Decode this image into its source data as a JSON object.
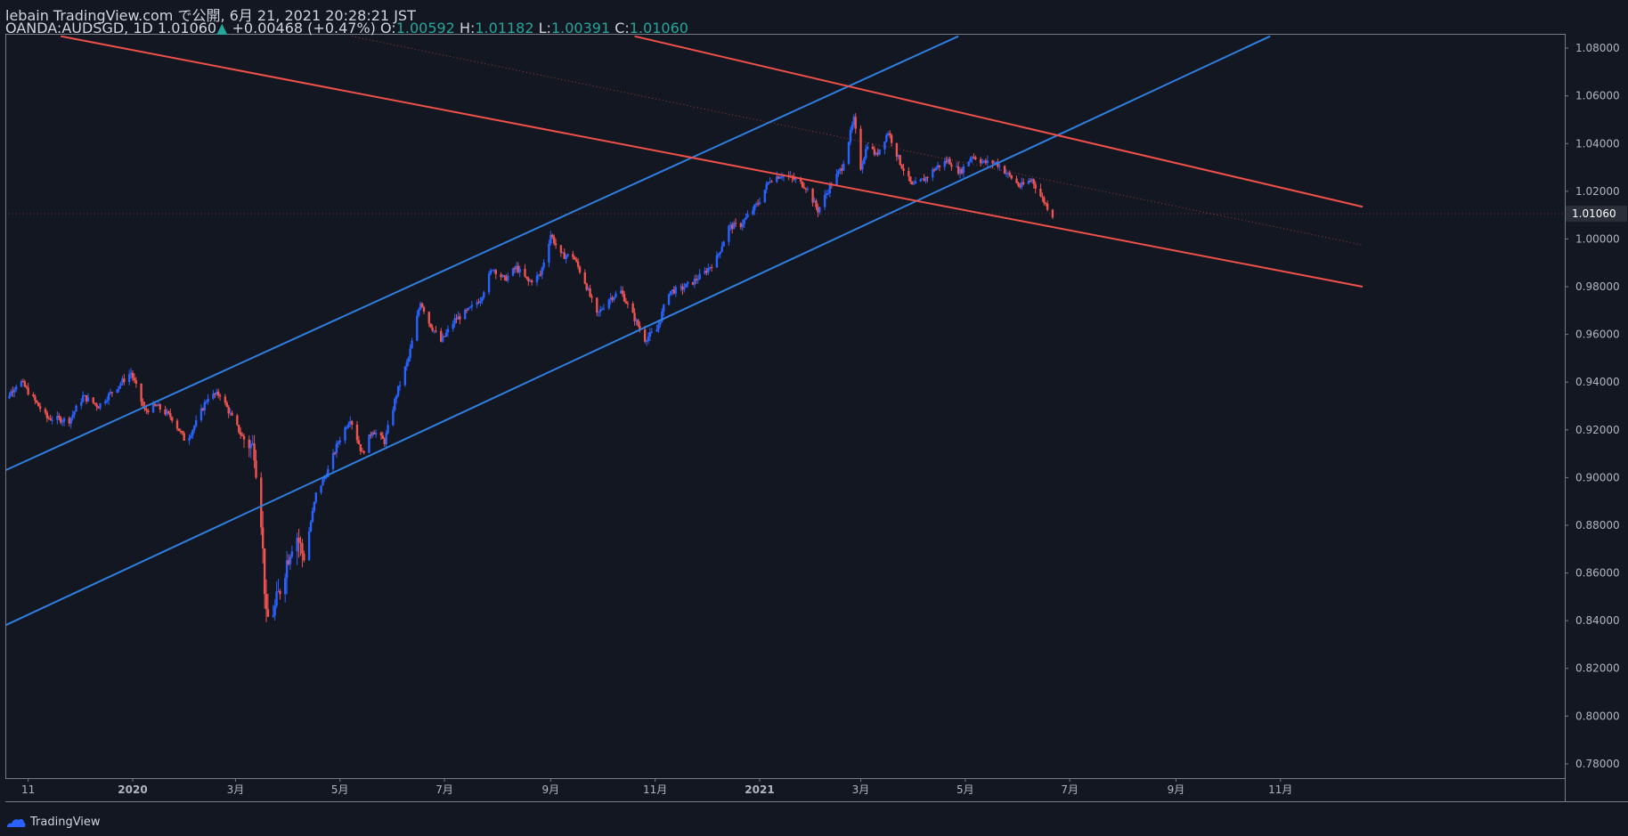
{
  "header": {
    "published": "lebain TradingView.com で公開, 6月 21, 2021 20:28:21 JST",
    "symbol": "OANDA:AUDSGD, 1D",
    "last": "1.01060",
    "change": "+0.00468 (+0.47%)",
    "o_label": "O:",
    "o_value": "1.00592",
    "h_label": "H:",
    "h_value": "1.01182",
    "l_label": "L:",
    "l_value": "1.00391",
    "c_label": "C:",
    "c_value": "1.01060"
  },
  "footer": {
    "brand": "TradingView"
  },
  "colors": {
    "background": "#131722",
    "up": "#2962ff",
    "down": "#ef5350",
    "blue_line": "#2f7fe0",
    "red_line": "#f0504a",
    "axis_text": "#b2b5be",
    "grid": "#2a2e39"
  },
  "chart_data": {
    "type": "candlestick",
    "symbol": "OANDA:AUDSGD",
    "interval": "1D",
    "x_ticks": [
      "11",
      "2020",
      "3月",
      "5月",
      "7月",
      "9月",
      "11月",
      "2021",
      "3月",
      "5月",
      "7月",
      "9月",
      "11月"
    ],
    "x_ticks_dates": [
      "2019-11-01",
      "2020-01-01",
      "2020-03-01",
      "2020-05-01",
      "2020-07-01",
      "2020-09-01",
      "2020-11-01",
      "2021-01-01",
      "2021-03-01",
      "2021-05-01",
      "2021-07-01",
      "2021-09-01",
      "2021-11-01"
    ],
    "y_ticks": [
      "1.08000",
      "1.06000",
      "1.04000",
      "1.02000",
      "1.00000",
      "0.98000",
      "0.96000",
      "0.94000",
      "0.92000",
      "0.90000",
      "0.88000",
      "0.86000",
      "0.84000",
      "0.82000",
      "0.80000",
      "0.78000"
    ],
    "ylim": [
      0.774,
      1.086
    ],
    "last_price": "1.01060",
    "price_path": [
      [
        "2019-10-12",
        0.929
      ],
      [
        "2019-10-20",
        0.934
      ],
      [
        "2019-10-27",
        0.941
      ],
      [
        "2019-11-05",
        0.932
      ],
      [
        "2019-11-12",
        0.925
      ],
      [
        "2019-11-25",
        0.924
      ],
      [
        "2019-12-03",
        0.934
      ],
      [
        "2019-12-12",
        0.93
      ],
      [
        "2019-12-20",
        0.936
      ],
      [
        "2019-12-31",
        0.944
      ],
      [
        "2020-01-08",
        0.928
      ],
      [
        "2020-01-15",
        0.93
      ],
      [
        "2020-01-24",
        0.925
      ],
      [
        "2020-02-01",
        0.915
      ],
      [
        "2020-02-07",
        0.923
      ],
      [
        "2020-02-14",
        0.934
      ],
      [
        "2020-02-21",
        0.935
      ],
      [
        "2020-02-28",
        0.925
      ],
      [
        "2020-03-05",
        0.917
      ],
      [
        "2020-03-12",
        0.912
      ],
      [
        "2020-03-16",
        0.883
      ],
      [
        "2020-03-19",
        0.84
      ],
      [
        "2020-03-24",
        0.845
      ],
      [
        "2020-03-31",
        0.865
      ],
      [
        "2020-04-05",
        0.878
      ],
      [
        "2020-04-10",
        0.866
      ],
      [
        "2020-04-17",
        0.893
      ],
      [
        "2020-04-24",
        0.903
      ],
      [
        "2020-04-30",
        0.915
      ],
      [
        "2020-05-07",
        0.925
      ],
      [
        "2020-05-14",
        0.91
      ],
      [
        "2020-05-20",
        0.92
      ],
      [
        "2020-05-27",
        0.915
      ],
      [
        "2020-06-03",
        0.935
      ],
      [
        "2020-06-10",
        0.95
      ],
      [
        "2020-06-17",
        0.974
      ],
      [
        "2020-06-22",
        0.965
      ],
      [
        "2020-06-29",
        0.957
      ],
      [
        "2020-07-07",
        0.966
      ],
      [
        "2020-07-15",
        0.97
      ],
      [
        "2020-07-22",
        0.975
      ],
      [
        "2020-07-29",
        0.988
      ],
      [
        "2020-08-05",
        0.983
      ],
      [
        "2020-08-12",
        0.988
      ],
      [
        "2020-08-19",
        0.982
      ],
      [
        "2020-08-26",
        0.985
      ],
      [
        "2020-09-01",
        1.002
      ],
      [
        "2020-09-07",
        0.993
      ],
      [
        "2020-09-14",
        0.993
      ],
      [
        "2020-09-21",
        0.982
      ],
      [
        "2020-09-28",
        0.968
      ],
      [
        "2020-10-05",
        0.975
      ],
      [
        "2020-10-12",
        0.978
      ],
      [
        "2020-10-19",
        0.968
      ],
      [
        "2020-10-26",
        0.958
      ],
      [
        "2020-11-02",
        0.962
      ],
      [
        "2020-11-09",
        0.978
      ],
      [
        "2020-11-16",
        0.979
      ],
      [
        "2020-11-23",
        0.982
      ],
      [
        "2020-11-30",
        0.986
      ],
      [
        "2020-12-07",
        0.992
      ],
      [
        "2020-12-14",
        1.005
      ],
      [
        "2020-12-21",
        1.006
      ],
      [
        "2020-12-31",
        1.015
      ],
      [
        "2021-01-07",
        1.025
      ],
      [
        "2021-01-14",
        1.027
      ],
      [
        "2021-01-21",
        1.025
      ],
      [
        "2021-01-28",
        1.022
      ],
      [
        "2021-02-04",
        1.012
      ],
      [
        "2021-02-11",
        1.022
      ],
      [
        "2021-02-18",
        1.03
      ],
      [
        "2021-02-25",
        1.05
      ],
      [
        "2021-03-01",
        1.03
      ],
      [
        "2021-03-05",
        1.04
      ],
      [
        "2021-03-10",
        1.035
      ],
      [
        "2021-03-17",
        1.045
      ],
      [
        "2021-03-24",
        1.032
      ],
      [
        "2021-03-31",
        1.022
      ],
      [
        "2021-04-07",
        1.025
      ],
      [
        "2021-04-14",
        1.03
      ],
      [
        "2021-04-21",
        1.033
      ],
      [
        "2021-04-28",
        1.028
      ],
      [
        "2021-05-05",
        1.035
      ],
      [
        "2021-05-12",
        1.032
      ],
      [
        "2021-05-19",
        1.032
      ],
      [
        "2021-05-26",
        1.027
      ],
      [
        "2021-06-02",
        1.022
      ],
      [
        "2021-06-09",
        1.025
      ],
      [
        "2021-06-14",
        1.018
      ],
      [
        "2021-06-21",
        1.01
      ]
    ],
    "trend_lines": [
      {
        "color": "blue",
        "from": [
          "2019-10-11",
          0.9005
        ],
        "to": [
          "2021-04-27",
          1.085
        ]
      },
      {
        "color": "blue",
        "from": [
          "2019-10-11",
          0.8355
        ],
        "to": [
          "2021-10-26",
          1.085
        ]
      },
      {
        "color": "red",
        "from": [
          "2019-11-20",
          1.085
        ],
        "to": [
          "2021-12-19",
          0.98
        ]
      },
      {
        "color": "red",
        "from": [
          "2020-10-20",
          1.085
        ],
        "to": [
          "2021-12-19",
          1.0135
        ]
      },
      {
        "color": "red",
        "style": "dotted",
        "from": [
          "2020-05-08",
          1.085
        ],
        "to": [
          "2021-12-19",
          0.9975
        ]
      }
    ]
  }
}
